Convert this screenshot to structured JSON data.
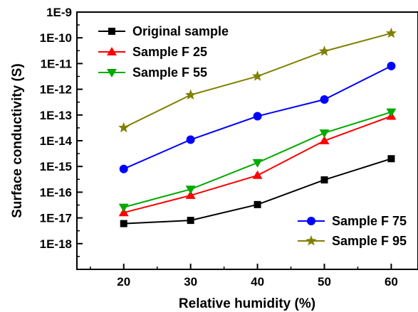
{
  "chart_data": {
    "type": "line",
    "xlabel": "Relative humidity (%)",
    "ylabel": "Surface conductivity (S)",
    "x": [
      20,
      30,
      40,
      50,
      60
    ],
    "x_ticks": [
      "20",
      "30",
      "40",
      "50",
      "60"
    ],
    "xlim": [
      13,
      64
    ],
    "y_scale": "log",
    "ylim": [
      1e-19,
      1e-09
    ],
    "y_ticks": [
      1e-18,
      1e-17,
      1e-16,
      1e-15,
      1e-14,
      1e-13,
      1e-12,
      1e-11,
      1e-10,
      1e-09
    ],
    "y_tick_labels": [
      "1E-18",
      "1E-17",
      "1E-16",
      "1E-15",
      "1E-14",
      "1E-13",
      "1E-12",
      "1E-11",
      "1E-10",
      "1E-9"
    ],
    "grid": false,
    "series": [
      {
        "name": "Original sample",
        "color": "#000000",
        "marker": "square",
        "values": [
          6e-18,
          8e-18,
          3.3e-17,
          3e-16,
          2e-15
        ]
      },
      {
        "name": "Sample F 25",
        "color": "#ff0000",
        "marker": "triangle-up",
        "values": [
          1.6e-17,
          7.5e-17,
          4.5e-16,
          1e-14,
          9e-14
        ]
      },
      {
        "name": "Sample F 55",
        "color": "#00aa00",
        "marker": "triangle-down",
        "values": [
          2.6e-17,
          1.3e-16,
          1.4e-15,
          2e-14,
          1.3e-13
        ]
      },
      {
        "name": "Sample F 75",
        "color": "#0000ff",
        "marker": "circle",
        "values": [
          8e-16,
          1.1e-14,
          9e-14,
          4e-13,
          8e-12
        ]
      },
      {
        "name": "Sample F 95",
        "color": "#808000",
        "marker": "star",
        "values": [
          3.2e-14,
          6e-13,
          3.2e-12,
          3e-11,
          1.5e-10
        ]
      }
    ],
    "legends": [
      {
        "placement": "top-left",
        "series": [
          0,
          1,
          2
        ]
      },
      {
        "placement": "bottom-right",
        "series": [
          3,
          4
        ]
      }
    ]
  }
}
